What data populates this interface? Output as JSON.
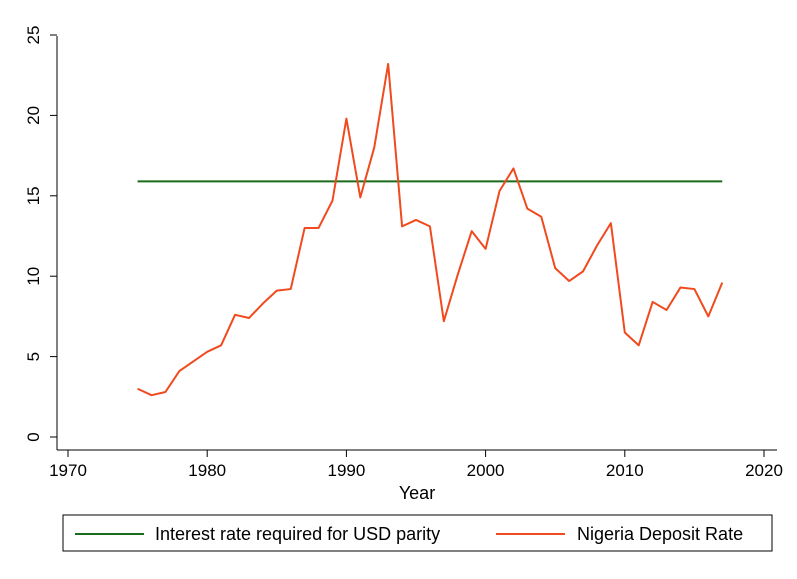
{
  "chart_data": {
    "type": "line",
    "title": "",
    "xlabel": "Year",
    "ylabel": "",
    "xlim": [
      1970,
      2020
    ],
    "ylim": [
      0,
      25
    ],
    "xticks": [
      1970,
      1980,
      1990,
      2000,
      2010,
      2020
    ],
    "yticks": [
      0,
      5,
      10,
      15,
      20,
      25
    ],
    "grid": false,
    "legend_position": "bottom",
    "series": [
      {
        "name": "Interest rate required for USD parity",
        "color": "#1a6b1a",
        "x": [
          1975,
          2017
        ],
        "values": [
          15.9,
          15.9
        ]
      },
      {
        "name": "Nigeria Deposit Rate",
        "color": "#f04a1e",
        "x": [
          1975,
          1976,
          1977,
          1978,
          1979,
          1980,
          1981,
          1982,
          1983,
          1984,
          1985,
          1986,
          1987,
          1988,
          1989,
          1990,
          1991,
          1992,
          1993,
          1994,
          1995,
          1996,
          1997,
          1998,
          1999,
          2000,
          2001,
          2002,
          2003,
          2004,
          2005,
          2006,
          2007,
          2008,
          2009,
          2010,
          2011,
          2012,
          2013,
          2014,
          2015,
          2016,
          2017
        ],
        "values": [
          3.0,
          2.6,
          2.8,
          4.1,
          4.7,
          5.3,
          5.7,
          7.6,
          7.4,
          8.3,
          9.1,
          9.2,
          13.0,
          13.0,
          14.7,
          19.8,
          14.9,
          18.0,
          23.2,
          13.1,
          13.5,
          13.1,
          7.2,
          10.1,
          12.8,
          11.7,
          15.3,
          16.7,
          14.2,
          13.7,
          10.5,
          9.7,
          10.3,
          11.9,
          13.3,
          6.5,
          5.7,
          8.4,
          7.9,
          9.3,
          9.2,
          7.5,
          9.6
        ]
      }
    ]
  }
}
